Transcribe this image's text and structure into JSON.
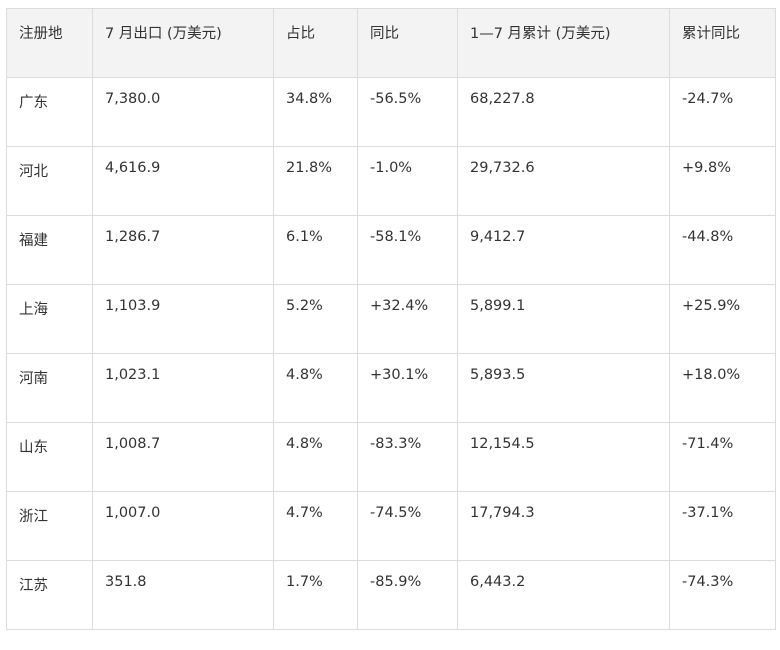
{
  "table": {
    "header": [
      "注册地",
      "7 月出口 (万美元)",
      "占比",
      "同比",
      "1—7 月累计 (万美元)",
      "累计同比"
    ],
    "rows": [
      [
        "广东",
        "7,380.0",
        "34.8%",
        "-56.5%",
        "68,227.8",
        "-24.7%"
      ],
      [
        "河北",
        "4,616.9",
        "21.8%",
        "-1.0%",
        "29,732.6",
        "+9.8%"
      ],
      [
        "福建",
        "1,286.7",
        "6.1%",
        "-58.1%",
        "9,412.7",
        "-44.8%"
      ],
      [
        "上海",
        "1,103.9",
        "5.2%",
        "+32.4%",
        "5,899.1",
        "+25.9%"
      ],
      [
        "河南",
        "1,023.1",
        "4.8%",
        "+30.1%",
        "5,893.5",
        "+18.0%"
      ],
      [
        "山东",
        "1,008.7",
        "4.8%",
        "-83.3%",
        "12,154.5",
        "-71.4%"
      ],
      [
        "浙江",
        "1,007.0",
        "4.7%",
        "-74.5%",
        "17,794.3",
        "-37.1%"
      ],
      [
        "江苏",
        "351.8",
        "1.7%",
        "-85.9%",
        "6,443.2",
        "-74.3%"
      ]
    ]
  }
}
